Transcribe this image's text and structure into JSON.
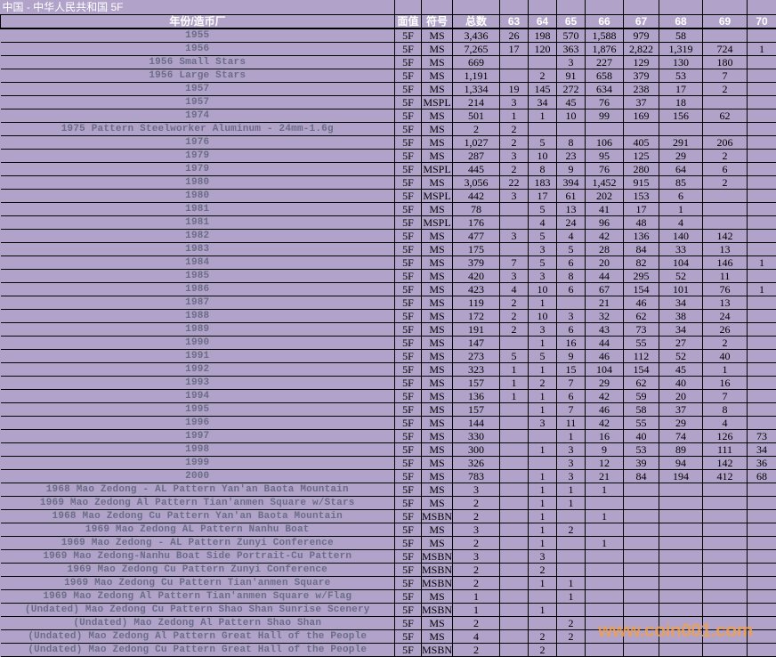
{
  "title": "中国 - 中华人民共和国 5F",
  "headers": [
    "年份/造币厂",
    "面值",
    "符号",
    "总数",
    "63",
    "64",
    "65",
    "66",
    "67",
    "68",
    "69",
    "70"
  ],
  "rows": [
    [
      "1955",
      "5F",
      "MS",
      "3,436",
      "26",
      "198",
      "570",
      "1,588",
      "979",
      "58",
      "",
      ""
    ],
    [
      "1956",
      "5F",
      "MS",
      "7,265",
      "17",
      "120",
      "363",
      "1,876",
      "2,822",
      "1,319",
      "724",
      "1"
    ],
    [
      "1956 Small Stars",
      "5F",
      "MS",
      "669",
      "",
      "",
      "3",
      "227",
      "129",
      "130",
      "180",
      ""
    ],
    [
      "1956 Large Stars",
      "5F",
      "MS",
      "1,191",
      "",
      "2",
      "91",
      "658",
      "379",
      "53",
      "7",
      ""
    ],
    [
      "1957",
      "5F",
      "MS",
      "1,334",
      "19",
      "145",
      "272",
      "634",
      "238",
      "17",
      "2",
      ""
    ],
    [
      "1957",
      "5F",
      "MSPL",
      "214",
      "3",
      "34",
      "45",
      "76",
      "37",
      "18",
      "",
      ""
    ],
    [
      "1974",
      "5F",
      "MS",
      "501",
      "1",
      "1",
      "10",
      "99",
      "169",
      "156",
      "62",
      ""
    ],
    [
      "1975 Pattern Steelworker Aluminum - 24mm-1.6g",
      "5F",
      "MS",
      "2",
      "2",
      "",
      "",
      "",
      "",
      "",
      "",
      ""
    ],
    [
      "1976",
      "5F",
      "MS",
      "1,027",
      "2",
      "5",
      "8",
      "106",
      "405",
      "291",
      "206",
      ""
    ],
    [
      "1979",
      "5F",
      "MS",
      "287",
      "3",
      "10",
      "23",
      "95",
      "125",
      "29",
      "2",
      ""
    ],
    [
      "1979",
      "5F",
      "MSPL",
      "445",
      "2",
      "8",
      "9",
      "76",
      "280",
      "64",
      "6",
      ""
    ],
    [
      "1980",
      "5F",
      "MS",
      "3,056",
      "22",
      "183",
      "394",
      "1,452",
      "915",
      "85",
      "2",
      ""
    ],
    [
      "1980",
      "5F",
      "MSPL",
      "442",
      "3",
      "17",
      "61",
      "202",
      "153",
      "6",
      "",
      ""
    ],
    [
      "1981",
      "5F",
      "MS",
      "78",
      "",
      "5",
      "13",
      "41",
      "17",
      "1",
      "",
      ""
    ],
    [
      "1981",
      "5F",
      "MSPL",
      "176",
      "",
      "4",
      "24",
      "96",
      "48",
      "4",
      "",
      ""
    ],
    [
      "1982",
      "5F",
      "MS",
      "477",
      "3",
      "5",
      "4",
      "42",
      "136",
      "140",
      "142",
      ""
    ],
    [
      "1983",
      "5F",
      "MS",
      "175",
      "",
      "3",
      "5",
      "28",
      "84",
      "33",
      "13",
      ""
    ],
    [
      "1984",
      "5F",
      "MS",
      "379",
      "7",
      "5",
      "6",
      "20",
      "82",
      "104",
      "146",
      "1"
    ],
    [
      "1985",
      "5F",
      "MS",
      "420",
      "3",
      "3",
      "8",
      "44",
      "295",
      "52",
      "11",
      ""
    ],
    [
      "1986",
      "5F",
      "MS",
      "423",
      "4",
      "10",
      "6",
      "67",
      "154",
      "101",
      "76",
      "1"
    ],
    [
      "1987",
      "5F",
      "MS",
      "119",
      "2",
      "1",
      "",
      "21",
      "46",
      "34",
      "13",
      ""
    ],
    [
      "1988",
      "5F",
      "MS",
      "172",
      "2",
      "10",
      "3",
      "32",
      "62",
      "38",
      "24",
      ""
    ],
    [
      "1989",
      "5F",
      "MS",
      "191",
      "2",
      "3",
      "6",
      "43",
      "73",
      "34",
      "26",
      ""
    ],
    [
      "1990",
      "5F",
      "MS",
      "147",
      "",
      "1",
      "16",
      "44",
      "55",
      "27",
      "2",
      ""
    ],
    [
      "1991",
      "5F",
      "MS",
      "273",
      "5",
      "5",
      "9",
      "46",
      "112",
      "52",
      "40",
      ""
    ],
    [
      "1992",
      "5F",
      "MS",
      "323",
      "1",
      "1",
      "15",
      "104",
      "154",
      "45",
      "1",
      ""
    ],
    [
      "1993",
      "5F",
      "MS",
      "157",
      "1",
      "2",
      "7",
      "29",
      "62",
      "40",
      "16",
      ""
    ],
    [
      "1994",
      "5F",
      "MS",
      "136",
      "1",
      "1",
      "6",
      "42",
      "59",
      "20",
      "7",
      ""
    ],
    [
      "1995",
      "5F",
      "MS",
      "157",
      "",
      "1",
      "7",
      "46",
      "58",
      "37",
      "8",
      ""
    ],
    [
      "1996",
      "5F",
      "MS",
      "144",
      "",
      "3",
      "11",
      "42",
      "55",
      "29",
      "4",
      ""
    ],
    [
      "1997",
      "5F",
      "MS",
      "330",
      "",
      "",
      "1",
      "16",
      "40",
      "74",
      "126",
      "73"
    ],
    [
      "1998",
      "5F",
      "MS",
      "300",
      "",
      "1",
      "3",
      "9",
      "53",
      "89",
      "111",
      "34"
    ],
    [
      "1999",
      "5F",
      "MS",
      "326",
      "",
      "",
      "3",
      "12",
      "39",
      "94",
      "142",
      "36"
    ],
    [
      "2000",
      "5F",
      "MS",
      "783",
      "",
      "1",
      "3",
      "21",
      "84",
      "194",
      "412",
      "68"
    ],
    [
      "1968 Mao Zedong - AL Pattern Yan'an Baota Mountain",
      "5F",
      "MS",
      "3",
      "",
      "1",
      "1",
      "1",
      "",
      "",
      "",
      ""
    ],
    [
      "1969 Mao Zedong Al Pattern Tian'anmen Square w/Stars",
      "5F",
      "MS",
      "2",
      "",
      "1",
      "1",
      "",
      "",
      "",
      "",
      ""
    ],
    [
      "1968 Mao Zedong Cu Pattern Yan'an Baota Mountain",
      "5F",
      "MSBN",
      "2",
      "",
      "1",
      "",
      "1",
      "",
      "",
      "",
      ""
    ],
    [
      "1969 Mao Zedong AL Pattern Nanhu Boat",
      "5F",
      "MS",
      "3",
      "",
      "1",
      "2",
      "",
      "",
      "",
      "",
      ""
    ],
    [
      "1969 Mao Zedong - AL Pattern Zunyi Conference",
      "5F",
      "MS",
      "2",
      "",
      "1",
      "",
      "1",
      "",
      "",
      "",
      ""
    ],
    [
      "1969 Mao Zedong-Nanhu Boat Side Portrait-Cu Pattern",
      "5F",
      "MSBN",
      "3",
      "",
      "3",
      "",
      "",
      "",
      "",
      "",
      ""
    ],
    [
      "1969 Mao Zedong Cu Pattern Zunyi Conference",
      "5F",
      "MSBN",
      "2",
      "",
      "2",
      "",
      "",
      "",
      "",
      "",
      ""
    ],
    [
      "1969 Mao Zedong Cu Pattern Tian'anmen Square",
      "5F",
      "MSBN",
      "2",
      "",
      "1",
      "1",
      "",
      "",
      "",
      "",
      ""
    ],
    [
      "1969 Mao Zedong Al Pattern Tian'anmen Square w/Flag",
      "5F",
      "MS",
      "1",
      "",
      "",
      "1",
      "",
      "",
      "",
      "",
      ""
    ],
    [
      "(Undated) Mao Zedong Cu Pattern Shao Shan Sunrise Scenery",
      "5F",
      "MSBN",
      "1",
      "",
      "1",
      "",
      "",
      "",
      "",
      "",
      ""
    ],
    [
      "(Undated) Mao Zedong Al Pattern Shao Shan",
      "5F",
      "MS",
      "2",
      "",
      "",
      "2",
      "",
      "",
      "",
      "",
      ""
    ],
    [
      "(Undated) Mao Zedong Al Pattern Great Hall of the People",
      "5F",
      "MS",
      "4",
      "",
      "2",
      "2",
      "",
      "",
      "",
      "",
      ""
    ],
    [
      "(Undated) Mao Zedong Cu Pattern Great Hall of the People",
      "5F",
      "MSBN",
      "2",
      "",
      "2",
      "",
      "",
      "",
      "",
      "",
      ""
    ]
  ],
  "watermark": "www.coin001.com",
  "colors": {
    "background": "#b0a2c8",
    "label_text": "#6b6d86",
    "header_text": "#ffffff",
    "watermark": "#f0a050"
  }
}
